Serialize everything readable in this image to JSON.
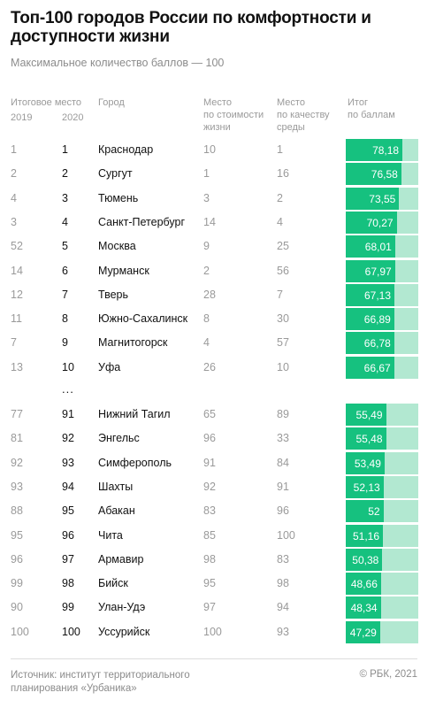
{
  "title": "Топ-100 городов России по комфортности и доступности жизни",
  "subtitle": "Максимальное количество баллов — 100",
  "headers": {
    "rank_group": "Итоговое место",
    "year_2019": "2019",
    "year_2020": "2020",
    "city": "Город",
    "cost_line1": "Место",
    "cost_line2": "по стоимости",
    "cost_line3": "жизни",
    "env_line1": "Место",
    "env_line2": "по качеству",
    "env_line3": "среды",
    "score_line1": "Итог",
    "score_line2": "по баллам"
  },
  "ellipsis": "...",
  "chart_data": {
    "type": "table",
    "max_score": 100,
    "columns": [
      "2019",
      "2020",
      "Город",
      "Место по стоимости жизни",
      "Место по качеству среды",
      "Итог по баллам"
    ],
    "rows": [
      {
        "r2019": "1",
        "r2020": "1",
        "city": "Краснодар",
        "cost": "10",
        "env": "1",
        "score_label": "78,18",
        "score": 78.18
      },
      {
        "r2019": "2",
        "r2020": "2",
        "city": "Сургут",
        "cost": "1",
        "env": "16",
        "score_label": "76,58",
        "score": 76.58
      },
      {
        "r2019": "4",
        "r2020": "3",
        "city": "Тюмень",
        "cost": "3",
        "env": "2",
        "score_label": "73,55",
        "score": 73.55
      },
      {
        "r2019": "3",
        "r2020": "4",
        "city": "Санкт-Петербург",
        "cost": "14",
        "env": "4",
        "score_label": "70,27",
        "score": 70.27
      },
      {
        "r2019": "52",
        "r2020": "5",
        "city": "Москва",
        "cost": "9",
        "env": "25",
        "score_label": "68,01",
        "score": 68.01
      },
      {
        "r2019": "14",
        "r2020": "6",
        "city": "Мурманск",
        "cost": "2",
        "env": "56",
        "score_label": "67,97",
        "score": 67.97
      },
      {
        "r2019": "12",
        "r2020": "7",
        "city": "Тверь",
        "cost": "28",
        "env": "7",
        "score_label": "67,13",
        "score": 67.13
      },
      {
        "r2019": "11",
        "r2020": "8",
        "city": "Южно-Сахалинск",
        "cost": "8",
        "env": "30",
        "score_label": "66,89",
        "score": 66.89
      },
      {
        "r2019": "7",
        "r2020": "9",
        "city": "Магнитогорск",
        "cost": "4",
        "env": "57",
        "score_label": "66,78",
        "score": 66.78
      },
      {
        "r2019": "13",
        "r2020": "10",
        "city": "Уфа",
        "cost": "26",
        "env": "10",
        "score_label": "66,67",
        "score": 66.67
      },
      {
        "r2019": "77",
        "r2020": "91",
        "city": "Нижний Тагил",
        "cost": "65",
        "env": "89",
        "score_label": "55,49",
        "score": 55.49
      },
      {
        "r2019": "81",
        "r2020": "92",
        "city": "Энгельс",
        "cost": "96",
        "env": "33",
        "score_label": "55,48",
        "score": 55.48
      },
      {
        "r2019": "92",
        "r2020": "93",
        "city": "Симферополь",
        "cost": "91",
        "env": "84",
        "score_label": "53,49",
        "score": 53.49
      },
      {
        "r2019": "93",
        "r2020": "94",
        "city": "Шахты",
        "cost": "92",
        "env": "91",
        "score_label": "52,13",
        "score": 52.13
      },
      {
        "r2019": "88",
        "r2020": "95",
        "city": "Абакан",
        "cost": "83",
        "env": "96",
        "score_label": "52",
        "score": 52
      },
      {
        "r2019": "95",
        "r2020": "96",
        "city": "Чита",
        "cost": "85",
        "env": "100",
        "score_label": "51,16",
        "score": 51.16
      },
      {
        "r2019": "96",
        "r2020": "97",
        "city": "Армавир",
        "cost": "98",
        "env": "83",
        "score_label": "50,38",
        "score": 50.38
      },
      {
        "r2019": "99",
        "r2020": "98",
        "city": "Бийск",
        "cost": "95",
        "env": "98",
        "score_label": "48,66",
        "score": 48.66
      },
      {
        "r2019": "90",
        "r2020": "99",
        "city": "Улан-Удэ",
        "cost": "97",
        "env": "94",
        "score_label": "48,34",
        "score": 48.34
      },
      {
        "r2019": "100",
        "r2020": "100",
        "city": "Уссурийск",
        "cost": "100",
        "env": "93",
        "score_label": "47,29",
        "score": 47.29
      }
    ],
    "colors": {
      "bar": "#16c17f",
      "bar_track": "#b2e8d1"
    }
  },
  "footer": {
    "source": "Источник: институт территориального планирования «Урбаника»",
    "credit": "© РБК, 2021"
  }
}
